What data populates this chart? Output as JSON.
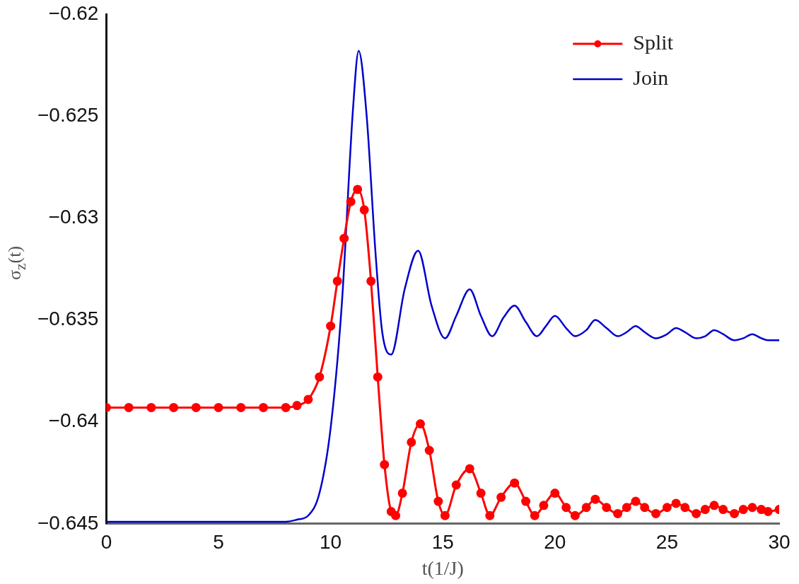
{
  "chart_data": {
    "type": "line",
    "xlabel": "t(1/J)",
    "ylabel": "σ$_{z}$(t)",
    "xlim": [
      0,
      30
    ],
    "xticks": [
      0,
      5,
      10,
      15,
      20,
      25,
      30
    ],
    "ylim": [
      -0.645,
      -0.62
    ],
    "yticks": [
      -0.645,
      -0.64,
      -0.635,
      -0.63,
      -0.625,
      -0.62
    ],
    "grid": false,
    "legend": "top right",
    "series": [
      {
        "name": "Split",
        "color": "#ff0000",
        "marker": "circle",
        "x": [
          0,
          1,
          2,
          3,
          4,
          5,
          6,
          7,
          8,
          8.5,
          9,
          9.5,
          10,
          10.3,
          10.6,
          10.9,
          11.2,
          11.5,
          11.8,
          12.1,
          12.4,
          12.7,
          12.9,
          13.2,
          13.6,
          14,
          14.4,
          14.8,
          15.1,
          15.6,
          16.2,
          16.7,
          17.1,
          17.6,
          18.2,
          18.7,
          19.1,
          19.5,
          20,
          20.5,
          20.9,
          21.4,
          21.8,
          22.3,
          22.8,
          23.2,
          23.6,
          24,
          24.5,
          25,
          25.4,
          25.8,
          26.3,
          26.7,
          27.1,
          27.5,
          28,
          28.4,
          28.8,
          29.2,
          29.5,
          30
        ],
        "values": [
          -0.6393,
          -0.6393,
          -0.6393,
          -0.6393,
          -0.6393,
          -0.6393,
          -0.6393,
          -0.6393,
          -0.6393,
          -0.6392,
          -0.6389,
          -0.6378,
          -0.6353,
          -0.6331,
          -0.631,
          -0.6292,
          -0.6286,
          -0.6296,
          -0.6331,
          -0.6378,
          -0.6421,
          -0.6444,
          -0.6446,
          -0.6435,
          -0.641,
          -0.6401,
          -0.6414,
          -0.6439,
          -0.6446,
          -0.6431,
          -0.6423,
          -0.6435,
          -0.6446,
          -0.6437,
          -0.643,
          -0.6439,
          -0.6446,
          -0.6441,
          -0.6435,
          -0.6442,
          -0.6446,
          -0.6442,
          -0.6438,
          -0.6442,
          -0.6445,
          -0.6442,
          -0.6439,
          -0.6442,
          -0.6445,
          -0.6442,
          -0.644,
          -0.6442,
          -0.6445,
          -0.6443,
          -0.6441,
          -0.6443,
          -0.6445,
          -0.6443,
          -0.6442,
          -0.6443,
          -0.6444,
          -0.6443
        ]
      },
      {
        "name": "Join",
        "color": "#0000cc",
        "marker": "none",
        "x": [
          0,
          2,
          4,
          6,
          8,
          8.5,
          9,
          9.5,
          10,
          10.5,
          11,
          11.25,
          11.6,
          12,
          12.3,
          12.7,
          13.3,
          13.9,
          14.5,
          15.1,
          15.6,
          16.2,
          16.7,
          17.2,
          17.7,
          18.2,
          18.7,
          19.2,
          19.6,
          20,
          20.5,
          20.9,
          21.4,
          21.8,
          22.3,
          22.8,
          23.2,
          23.6,
          24,
          24.5,
          25,
          25.4,
          25.8,
          26.3,
          26.7,
          27.1,
          27.5,
          28,
          28.4,
          28.8,
          29.2,
          29.5,
          30
        ],
        "values": [
          -0.6449,
          -0.6449,
          -0.6449,
          -0.6449,
          -0.6449,
          -0.6448,
          -0.6446,
          -0.6435,
          -0.6403,
          -0.6342,
          -0.6246,
          -0.6218,
          -0.6249,
          -0.6317,
          -0.6356,
          -0.6367,
          -0.6335,
          -0.6316,
          -0.6343,
          -0.6359,
          -0.6348,
          -0.6335,
          -0.6348,
          -0.6358,
          -0.6349,
          -0.6343,
          -0.6351,
          -0.6358,
          -0.6353,
          -0.6348,
          -0.6354,
          -0.6358,
          -0.6355,
          -0.635,
          -0.6354,
          -0.6358,
          -0.6356,
          -0.6353,
          -0.6356,
          -0.6359,
          -0.6357,
          -0.6354,
          -0.6356,
          -0.6359,
          -0.6358,
          -0.6355,
          -0.6357,
          -0.636,
          -0.6359,
          -0.6357,
          -0.6359,
          -0.636,
          -0.636
        ]
      }
    ]
  }
}
